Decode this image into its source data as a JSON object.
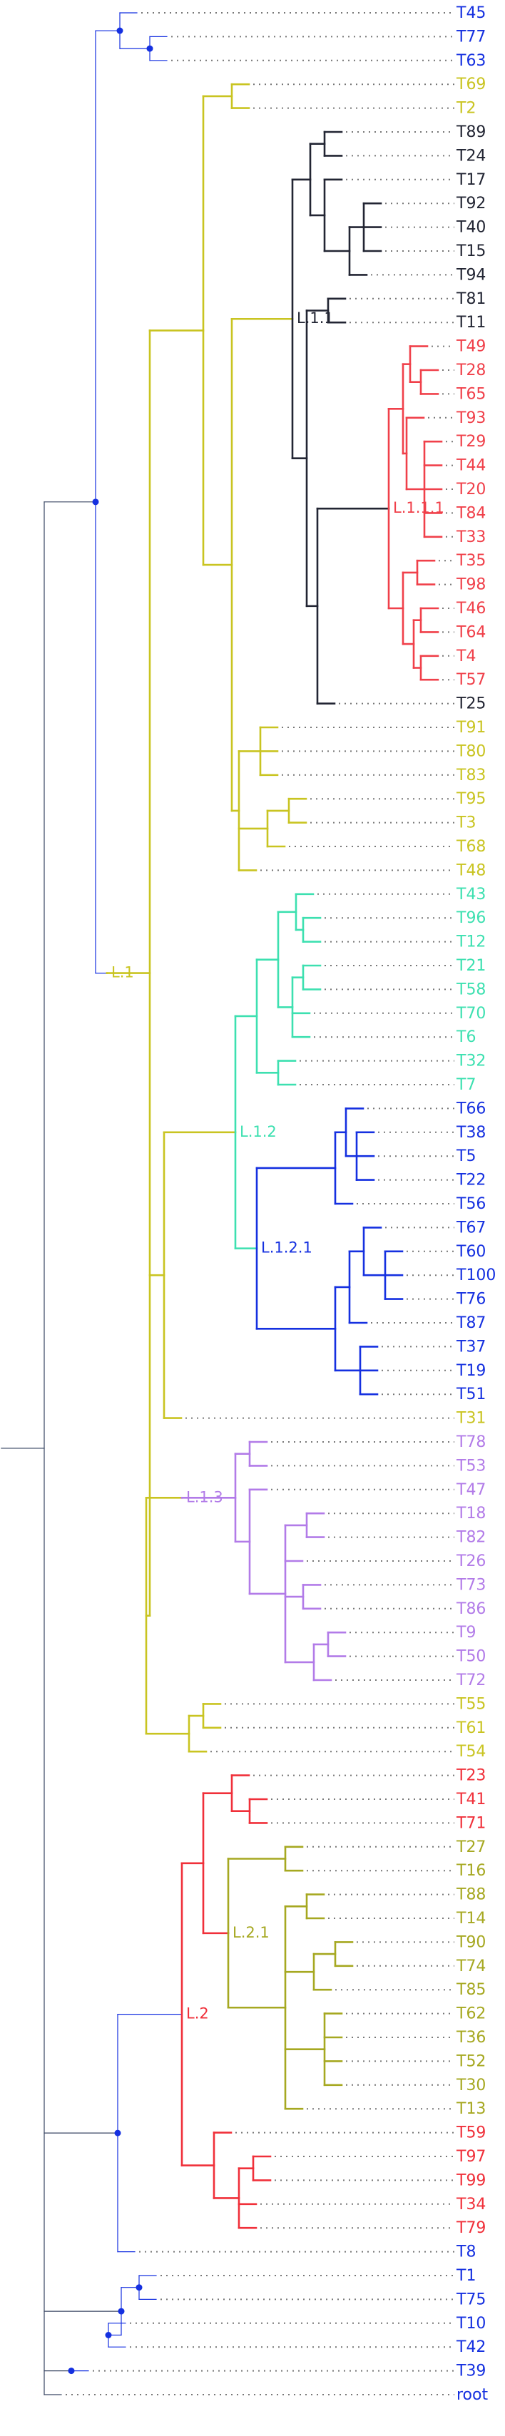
{
  "colors": {
    "L": "#c9c421",
    "L11": "#222533",
    "L111": "#f0404a",
    "L12": "#3de0b0",
    "L121": "#1530e0",
    "L13": "#b27be8",
    "L2": "#f0303a",
    "L21": "#a6a821",
    "base": "#1530e0",
    "stem": "#3a4763"
  },
  "clade_labels": {
    "L": "L.1",
    "L11": "L.1.1",
    "L111": "L.1.1.1",
    "L12": "L.1.2",
    "L121": "L.1.2.1",
    "L13": "L.1.3",
    "L2": "L.2",
    "L21": "L.2.1"
  },
  "leaves": [
    {
      "name": "T45",
      "group": "base"
    },
    {
      "name": "T77",
      "group": "base"
    },
    {
      "name": "T63",
      "group": "base"
    },
    {
      "name": "T69",
      "group": "L"
    },
    {
      "name": "T2",
      "group": "L"
    },
    {
      "name": "T89",
      "group": "L11"
    },
    {
      "name": "T24",
      "group": "L11"
    },
    {
      "name": "T17",
      "group": "L11"
    },
    {
      "name": "T92",
      "group": "L11"
    },
    {
      "name": "T40",
      "group": "L11"
    },
    {
      "name": "T15",
      "group": "L11"
    },
    {
      "name": "T94",
      "group": "L11"
    },
    {
      "name": "T81",
      "group": "L11"
    },
    {
      "name": "T11",
      "group": "L11"
    },
    {
      "name": "T49",
      "group": "L111"
    },
    {
      "name": "T28",
      "group": "L111"
    },
    {
      "name": "T65",
      "group": "L111"
    },
    {
      "name": "T93",
      "group": "L111"
    },
    {
      "name": "T29",
      "group": "L111"
    },
    {
      "name": "T44",
      "group": "L111"
    },
    {
      "name": "T20",
      "group": "L111"
    },
    {
      "name": "T84",
      "group": "L111"
    },
    {
      "name": "T33",
      "group": "L111"
    },
    {
      "name": "T35",
      "group": "L111"
    },
    {
      "name": "T98",
      "group": "L111"
    },
    {
      "name": "T46",
      "group": "L111"
    },
    {
      "name": "T64",
      "group": "L111"
    },
    {
      "name": "T4",
      "group": "L111"
    },
    {
      "name": "T57",
      "group": "L111"
    },
    {
      "name": "T25",
      "group": "L11"
    },
    {
      "name": "T91",
      "group": "L"
    },
    {
      "name": "T80",
      "group": "L"
    },
    {
      "name": "T83",
      "group": "L"
    },
    {
      "name": "T95",
      "group": "L"
    },
    {
      "name": "T3",
      "group": "L"
    },
    {
      "name": "T68",
      "group": "L"
    },
    {
      "name": "T48",
      "group": "L"
    },
    {
      "name": "T43",
      "group": "L12"
    },
    {
      "name": "T96",
      "group": "L12"
    },
    {
      "name": "T12",
      "group": "L12"
    },
    {
      "name": "T21",
      "group": "L12"
    },
    {
      "name": "T58",
      "group": "L12"
    },
    {
      "name": "T70",
      "group": "L12"
    },
    {
      "name": "T6",
      "group": "L12"
    },
    {
      "name": "T32",
      "group": "L12"
    },
    {
      "name": "T7",
      "group": "L12"
    },
    {
      "name": "T66",
      "group": "L121"
    },
    {
      "name": "T38",
      "group": "L121"
    },
    {
      "name": "T5",
      "group": "L121"
    },
    {
      "name": "T22",
      "group": "L121"
    },
    {
      "name": "T56",
      "group": "L121"
    },
    {
      "name": "T67",
      "group": "L121"
    },
    {
      "name": "T60",
      "group": "L121"
    },
    {
      "name": "T100",
      "group": "L121"
    },
    {
      "name": "T76",
      "group": "L121"
    },
    {
      "name": "T87",
      "group": "L121"
    },
    {
      "name": "T37",
      "group": "L121"
    },
    {
      "name": "T19",
      "group": "L121"
    },
    {
      "name": "T51",
      "group": "L121"
    },
    {
      "name": "T31",
      "group": "L"
    },
    {
      "name": "T78",
      "group": "L13"
    },
    {
      "name": "T53",
      "group": "L13"
    },
    {
      "name": "T47",
      "group": "L13"
    },
    {
      "name": "T18",
      "group": "L13"
    },
    {
      "name": "T82",
      "group": "L13"
    },
    {
      "name": "T26",
      "group": "L13"
    },
    {
      "name": "T73",
      "group": "L13"
    },
    {
      "name": "T86",
      "group": "L13"
    },
    {
      "name": "T9",
      "group": "L13"
    },
    {
      "name": "T50",
      "group": "L13"
    },
    {
      "name": "T72",
      "group": "L13"
    },
    {
      "name": "T55",
      "group": "L"
    },
    {
      "name": "T61",
      "group": "L"
    },
    {
      "name": "T54",
      "group": "L"
    },
    {
      "name": "T23",
      "group": "L2"
    },
    {
      "name": "T41",
      "group": "L2"
    },
    {
      "name": "T71",
      "group": "L2"
    },
    {
      "name": "T27",
      "group": "L21"
    },
    {
      "name": "T16",
      "group": "L21"
    },
    {
      "name": "T88",
      "group": "L21"
    },
    {
      "name": "T14",
      "group": "L21"
    },
    {
      "name": "T90",
      "group": "L21"
    },
    {
      "name": "T74",
      "group": "L21"
    },
    {
      "name": "T85",
      "group": "L21"
    },
    {
      "name": "T62",
      "group": "L21"
    },
    {
      "name": "T36",
      "group": "L21"
    },
    {
      "name": "T52",
      "group": "L21"
    },
    {
      "name": "T30",
      "group": "L21"
    },
    {
      "name": "T13",
      "group": "L21"
    },
    {
      "name": "T59",
      "group": "L2"
    },
    {
      "name": "T97",
      "group": "L2"
    },
    {
      "name": "T99",
      "group": "L2"
    },
    {
      "name": "T34",
      "group": "L2"
    },
    {
      "name": "T79",
      "group": "L2"
    },
    {
      "name": "T8",
      "group": "base"
    },
    {
      "name": "T1",
      "group": "base"
    },
    {
      "name": "T75",
      "group": "base"
    },
    {
      "name": "T10",
      "group": "base"
    },
    {
      "name": "T42",
      "group": "base"
    },
    {
      "name": "T39",
      "group": "base"
    },
    {
      "name": "root",
      "group": "base"
    }
  ]
}
